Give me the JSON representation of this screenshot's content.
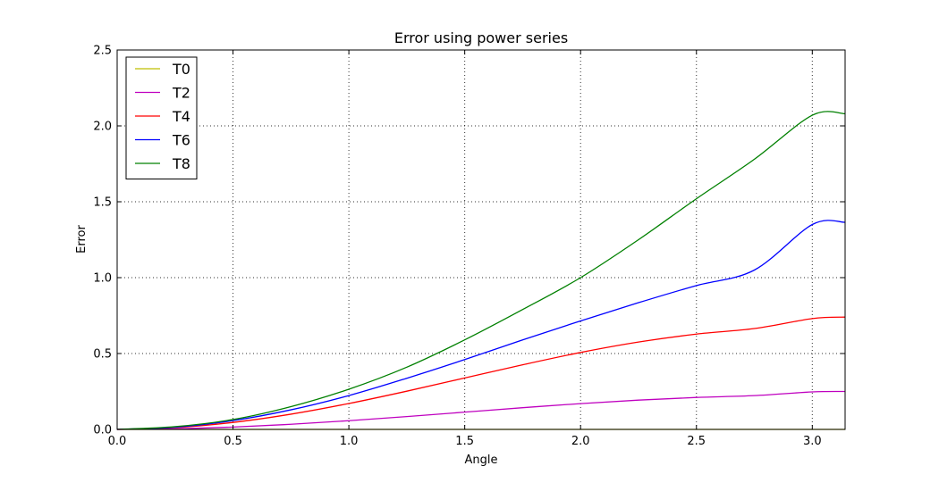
{
  "chart_data": {
    "type": "line",
    "title": "Error using power series",
    "xlabel": "Angle",
    "ylabel": "Error",
    "xlim": [
      0.0,
      3.1416
    ],
    "ylim": [
      0.0,
      2.5
    ],
    "xticks": [
      "0.0",
      "0.5",
      "1.0",
      "1.5",
      "2.0",
      "2.5",
      "3.0"
    ],
    "yticks": [
      "0.0",
      "0.5",
      "1.0",
      "1.5",
      "2.0",
      "2.5"
    ],
    "grid": true,
    "legend_position": "top-left",
    "x": [
      0.0,
      0.25,
      0.5,
      0.75,
      1.0,
      1.25,
      1.5,
      1.75,
      2.0,
      2.25,
      2.5,
      2.75,
      3.0,
      3.1416
    ],
    "series": [
      {
        "name": "T0",
        "color": "#bfbf00",
        "values": [
          0,
          0,
          0,
          0,
          0,
          0,
          0,
          0,
          0,
          0,
          0,
          0,
          0,
          0
        ]
      },
      {
        "name": "T2",
        "color": "#bf00bf",
        "values": [
          0.0,
          0.0039,
          0.0155,
          0.0337,
          0.0573,
          0.0846,
          0.1138,
          0.1429,
          0.17,
          0.1931,
          0.2106,
          0.2226,
          0.2471,
          0.25
        ]
      },
      {
        "name": "T4",
        "color": "#ff0000",
        "values": [
          0.0,
          0.0116,
          0.046,
          0.1003,
          0.1706,
          0.2519,
          0.339,
          0.4258,
          0.507,
          0.5756,
          0.628,
          0.6645,
          0.73,
          0.74
        ]
      },
      {
        "name": "T6",
        "color": "#0000ff",
        "values": [
          0.0,
          0.0145,
          0.058,
          0.129,
          0.223,
          0.337,
          0.46,
          0.59,
          0.715,
          0.835,
          0.948,
          1.05,
          1.35,
          1.365
        ]
      },
      {
        "name": "T8",
        "color": "#008000",
        "values": [
          0.0,
          0.018,
          0.065,
          0.15,
          0.265,
          0.41,
          0.59,
          0.79,
          1.0,
          1.25,
          1.52,
          1.78,
          2.07,
          2.08
        ]
      }
    ]
  }
}
